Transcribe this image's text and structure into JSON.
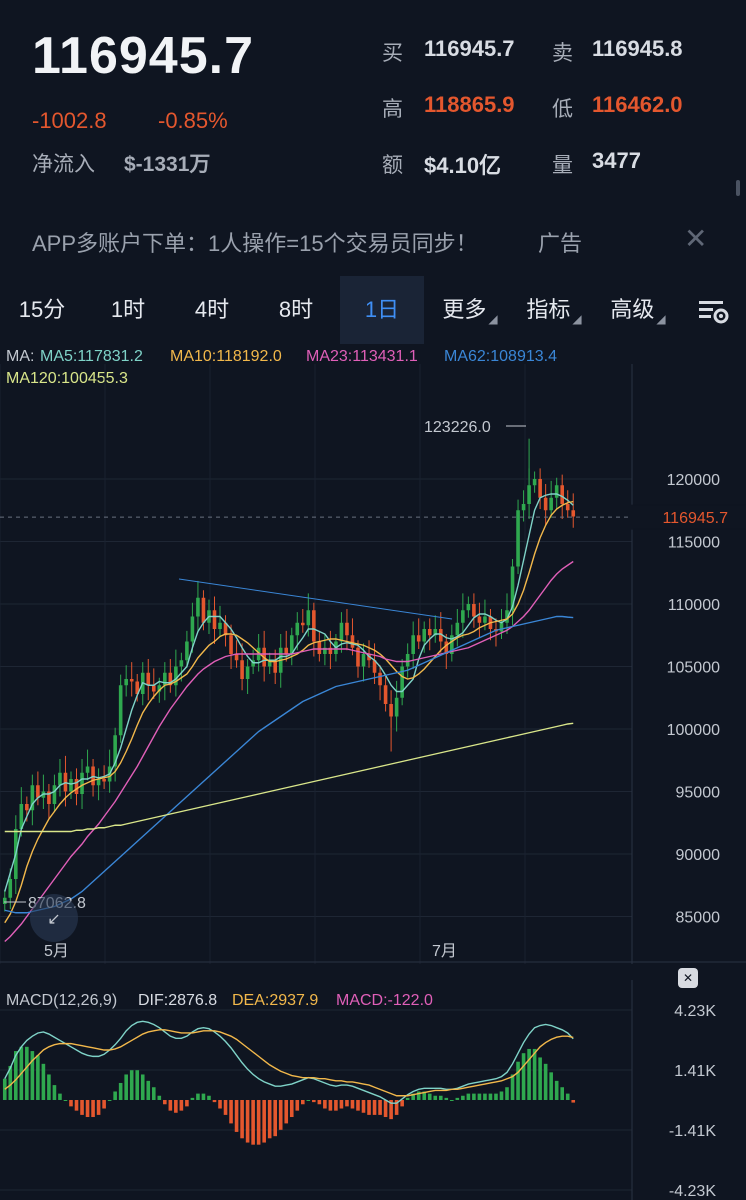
{
  "header": {
    "last_price": "116945.7",
    "change": "-1002.8",
    "change_pct": "-0.85%",
    "netflow_label": "净流入",
    "netflow_value": "$-1331万",
    "quote": {
      "buy_label": "买",
      "buy_value": "116945.7",
      "sell_label": "卖",
      "sell_value": "116945.8",
      "high_label": "高",
      "high_value": "118865.9",
      "low_label": "低",
      "low_value": "116462.0",
      "amount_label": "额",
      "amount_value": "$4.10亿",
      "volume_label": "量",
      "volume_value": "3477"
    }
  },
  "ad": {
    "text": "APP多账户下单：1人操作=15个交易员同步！",
    "tag": "广告",
    "close_icon": "close-icon"
  },
  "tabs": [
    {
      "label": "15分",
      "active": false
    },
    {
      "label": "1时",
      "active": false
    },
    {
      "label": "4时",
      "active": false
    },
    {
      "label": "8时",
      "active": false
    },
    {
      "label": "1日",
      "active": true
    },
    {
      "label": "更多",
      "active": false
    },
    {
      "label": "指标",
      "active": false
    },
    {
      "label": "高级",
      "active": false
    }
  ],
  "tab_settings_icon": "chart-settings-icon",
  "ma_legend": {
    "prefix": "MA:",
    "ma5": "MA5:117831.2",
    "ma10": "MA10:118192.0",
    "ma23": "MA23:113431.1",
    "ma62": "MA62:108913.4",
    "ma120": "MA120:100455.3"
  },
  "colors": {
    "up": "#e4572e",
    "green": "#2fa84f",
    "ma5": "#7fd3c8",
    "ma10": "#f2b84b",
    "ma23": "#e05fb8",
    "ma62": "#3a86d6",
    "ma120": "#d9e68a",
    "accent": "#3f8ff5",
    "dif": "#7fd3c8",
    "dea": "#f2b84b"
  },
  "macd_legend": {
    "label": "MACD(12,26,9)",
    "dif": "DIF:2876.8",
    "dea": "DEA:2937.9",
    "macd": "MACD:-122.0"
  },
  "chart_data": [
    {
      "type": "candlestick",
      "ylim": [
        82000,
        126000
      ],
      "y_ticks": [
        "120000",
        "115000",
        "110000",
        "105000",
        "100000",
        "95000",
        "90000",
        "85000"
      ],
      "x_labels": [
        "5月",
        "7月"
      ],
      "last_price_label": "116945.7",
      "high_marker": "123226.0",
      "low_marker": "87062.8",
      "close": [
        86500,
        88000,
        92000,
        94000,
        93500,
        95500,
        94500,
        95000,
        94000,
        95500,
        96500,
        95000,
        96000,
        94800,
        96500,
        97000,
        95500,
        96000,
        95800,
        97000,
        99500,
        103500,
        104000,
        103800,
        102800,
        104500,
        103500,
        103000,
        103500,
        104500,
        103500,
        105000,
        105500,
        107000,
        109000,
        110500,
        108500,
        109500,
        108000,
        108500,
        107500,
        106000,
        105500,
        104000,
        105000,
        105500,
        106500,
        105000,
        105500,
        104500,
        106500,
        106000,
        107500,
        108500,
        108300,
        109500,
        107000,
        106000,
        106500,
        106000,
        107000,
        108500,
        107500,
        106500,
        105000,
        106000,
        105500,
        104500,
        103500,
        102000,
        101000,
        102500,
        105000,
        106000,
        107500,
        107000,
        108000,
        107500,
        108000,
        107000,
        106000,
        107500,
        108500,
        109500,
        110000,
        109000,
        108500,
        109000,
        108000,
        107800,
        108500,
        109500,
        113000,
        117500,
        118000,
        119500,
        120000,
        118500,
        117500,
        118500,
        119500,
        118000,
        117500,
        117000
      ],
      "ma_series": [
        {
          "name": "MA5",
          "values": [
            87000,
            88500,
            90000,
            92000,
            93000,
            94000,
            94500,
            94800,
            94800,
            95000,
            95500,
            95700,
            95600,
            95700,
            96000,
            96000,
            96200,
            96100,
            96200,
            96400,
            97300,
            98500,
            100000,
            101500,
            102700,
            103700,
            103500,
            103500,
            103800,
            103700,
            103700,
            104000,
            104500,
            105000,
            106500,
            107800,
            108500,
            109000,
            109000,
            109000,
            108500,
            108000,
            107300,
            106500,
            105800,
            105300,
            105300,
            105500,
            105500,
            105500,
            105800,
            105800,
            106000,
            106700,
            107300,
            108000,
            108000,
            107800,
            107600,
            107000,
            106500,
            106800,
            106900,
            106800,
            106700,
            106300,
            105800,
            105500,
            105000,
            104300,
            103500,
            103000,
            103000,
            103500,
            104000,
            105600,
            106700,
            107200,
            107600,
            107600,
            107300,
            107200,
            107400,
            107700,
            108300,
            108900,
            109200,
            109200,
            109000,
            108700,
            108500,
            108800,
            109800,
            111500,
            113500,
            115500,
            117500,
            118500,
            118700,
            118800,
            118800,
            118600,
            118300,
            117900
          ]
        },
        {
          "name": "MA10",
          "values": [
            84500,
            85200,
            86200,
            87500,
            89000,
            90200,
            91200,
            92000,
            92800,
            93400,
            94000,
            94500,
            94900,
            95200,
            95500,
            95700,
            95900,
            96000,
            96100,
            96200,
            96600,
            97300,
            98200,
            99200,
            100300,
            101300,
            102000,
            102600,
            103100,
            103500,
            103600,
            103800,
            104100,
            104400,
            105000,
            105700,
            106200,
            106700,
            107000,
            107400,
            107600,
            107600,
            107500,
            107200,
            106900,
            106500,
            106100,
            105700,
            105400,
            105400,
            105500,
            105600,
            105800,
            106000,
            106300,
            106700,
            106900,
            107000,
            107100,
            107200,
            107200,
            107100,
            107000,
            106900,
            106800,
            106700,
            106500,
            106300,
            106000,
            105600,
            105100,
            104600,
            104200,
            104000,
            104100,
            104400,
            104800,
            105300,
            105800,
            106300,
            106700,
            107000,
            107300,
            107500,
            107600,
            107800,
            108100,
            108300,
            108500,
            108600,
            108700,
            108800,
            109200,
            110000,
            111100,
            112500,
            114000,
            115300,
            116300,
            117100,
            117600,
            117900,
            118100,
            118200
          ]
        },
        {
          "name": "MA23",
          "values": [
            83000,
            83400,
            83900,
            84400,
            85000,
            85600,
            86200,
            86800,
            87400,
            88000,
            88600,
            89200,
            89800,
            90300,
            90800,
            91400,
            91900,
            92400,
            93000,
            93600,
            94200,
            94900,
            95600,
            96300,
            97000,
            97800,
            98600,
            99400,
            100200,
            100900,
            101600,
            102200,
            102800,
            103400,
            103900,
            104400,
            104800,
            105100,
            105400,
            105600,
            105800,
            105900,
            106000,
            106000,
            106000,
            106000,
            106000,
            106000,
            106000,
            106000,
            106000,
            106000,
            106000,
            106100,
            106200,
            106300,
            106400,
            106400,
            106400,
            106400,
            106400,
            106400,
            106400,
            106300,
            106200,
            106100,
            106000,
            105900,
            105800,
            105600,
            105500,
            105400,
            105400,
            105400,
            105500,
            105600,
            105700,
            105800,
            105900,
            106000,
            106100,
            106200,
            106300,
            106400,
            106500,
            106700,
            106900,
            107100,
            107300,
            107500,
            107700,
            107900,
            108200,
            108600,
            109000,
            109500,
            110100,
            110700,
            111300,
            111900,
            112400,
            112800,
            113100,
            113400
          ]
        },
        {
          "name": "MA62",
          "values": [
            85500,
            85400,
            85300,
            85300,
            85300,
            85400,
            85500,
            85600,
            85700,
            85800,
            86000,
            86200,
            86400,
            86700,
            87000,
            87400,
            87800,
            88200,
            88600,
            89000,
            89400,
            89800,
            90200,
            90600,
            91000,
            91400,
            91800,
            92200,
            92600,
            93000,
            93400,
            93800,
            94200,
            94600,
            95000,
            95400,
            95800,
            96200,
            96600,
            97000,
            97400,
            97800,
            98200,
            98600,
            99000,
            99400,
            99800,
            100100,
            100400,
            100700,
            101000,
            101300,
            101600,
            101900,
            102200,
            102400,
            102600,
            102800,
            103000,
            103200,
            103400,
            103500,
            103600,
            103700,
            103800,
            103900,
            104000,
            104100,
            104200,
            104300,
            104400,
            104500,
            104600,
            104700,
            104900,
            105100,
            105300,
            105500,
            105700,
            105900,
            106100,
            106300,
            106500,
            106700,
            106900,
            107100,
            107300,
            107500,
            107700,
            107900,
            108000,
            108100,
            108200,
            108300,
            108400,
            108500,
            108600,
            108700,
            108800,
            108900,
            109000,
            109000,
            108950,
            108913
          ]
        },
        {
          "name": "MA120",
          "values": [
            91800,
            91800,
            91800,
            91800,
            91800,
            91800,
            91800,
            91800,
            91800,
            91800,
            91800,
            91800,
            91800,
            91900,
            91900,
            92000,
            92000,
            92100,
            92100,
            92200,
            92300,
            92300,
            92400,
            92500,
            92600,
            92700,
            92800,
            92900,
            93000,
            93100,
            93200,
            93300,
            93400,
            93500,
            93600,
            93700,
            93800,
            93900,
            94000,
            94100,
            94200,
            94300,
            94400,
            94500,
            94600,
            94700,
            94800,
            94900,
            95000,
            95100,
            95200,
            95300,
            95400,
            95500,
            95600,
            95700,
            95800,
            95900,
            96000,
            96100,
            96200,
            96300,
            96400,
            96500,
            96600,
            96700,
            96800,
            96900,
            97000,
            97100,
            97200,
            97300,
            97400,
            97500,
            97600,
            97700,
            97800,
            97900,
            98000,
            98100,
            98200,
            98300,
            98400,
            98500,
            98600,
            98700,
            98800,
            98900,
            99000,
            99100,
            99200,
            99300,
            99400,
            99500,
            99600,
            99700,
            99800,
            99900,
            100000,
            100100,
            100200,
            100300,
            100400,
            100455
          ]
        }
      ],
      "trendline": {
        "from": [
          179,
          112000
        ],
        "to": [
          450,
          109000
        ]
      }
    },
    {
      "type": "macd",
      "y_ticks": [
        "4.23K",
        "1.41K",
        "-1.41K",
        "-4.23K"
      ],
      "ylim": [
        -4230,
        4230
      ],
      "dif": [
        1000,
        1500,
        2100,
        2500,
        2800,
        3000,
        3150,
        3200,
        3100,
        2950,
        2800,
        2650,
        2500,
        2350,
        2200,
        2100,
        2050,
        2050,
        2150,
        2350,
        2600,
        2900,
        3250,
        3500,
        3650,
        3700,
        3650,
        3550,
        3400,
        3200,
        3000,
        2900,
        2900,
        3000,
        3200,
        3350,
        3400,
        3350,
        3200,
        3000,
        2750,
        2450,
        2100,
        1750,
        1450,
        1200,
        1000,
        850,
        750,
        650,
        650,
        700,
        750,
        850,
        950,
        1050,
        1000,
        900,
        800,
        700,
        650,
        700,
        700,
        650,
        550,
        450,
        350,
        250,
        150,
        0,
        -150,
        -150,
        50,
        250,
        400,
        500,
        550,
        550,
        550,
        550,
        500,
        500,
        550,
        650,
        750,
        800,
        850,
        900,
        950,
        1000,
        1100,
        1300,
        1700,
        2200,
        2700,
        3100,
        3400,
        3500,
        3550,
        3500,
        3400,
        3300,
        3150,
        2877
      ],
      "dea": [
        500,
        700,
        950,
        1250,
        1550,
        1850,
        2100,
        2350,
        2500,
        2600,
        2650,
        2650,
        2650,
        2600,
        2550,
        2500,
        2450,
        2400,
        2350,
        2350,
        2400,
        2500,
        2650,
        2800,
        2950,
        3100,
        3200,
        3250,
        3300,
        3300,
        3250,
        3200,
        3150,
        3150,
        3150,
        3200,
        3250,
        3250,
        3250,
        3200,
        3100,
        3000,
        2850,
        2650,
        2450,
        2250,
        2050,
        1850,
        1650,
        1500,
        1350,
        1250,
        1150,
        1100,
        1050,
        1050,
        1050,
        1000,
        1000,
        950,
        900,
        900,
        850,
        850,
        800,
        750,
        700,
        600,
        500,
        400,
        300,
        200,
        200,
        200,
        250,
        300,
        350,
        400,
        450,
        450,
        450,
        500,
        500,
        550,
        600,
        650,
        700,
        750,
        800,
        850,
        900,
        1000,
        1100,
        1300,
        1600,
        1900,
        2200,
        2500,
        2700,
        2850,
        2950,
        3000,
        3000,
        2938
      ],
      "hist": [
        1000,
        1600,
        2300,
        2500,
        2500,
        2300,
        2100,
        1700,
        1200,
        700,
        300,
        0,
        -300,
        -500,
        -700,
        -800,
        -800,
        -700,
        -400,
        0,
        400,
        800,
        1200,
        1400,
        1400,
        1200,
        900,
        600,
        200,
        -200,
        -500,
        -600,
        -500,
        -300,
        100,
        300,
        300,
        200,
        -100,
        -400,
        -700,
        -1100,
        -1500,
        -1800,
        -2000,
        -2100,
        -2100,
        -2000,
        -1800,
        -1700,
        -1400,
        -1100,
        -800,
        -500,
        -200,
        0,
        -100,
        -200,
        -400,
        -500,
        -500,
        -400,
        -300,
        -400,
        -500,
        -600,
        -700,
        -700,
        -700,
        -800,
        -900,
        -700,
        -300,
        100,
        300,
        400,
        400,
        300,
        200,
        200,
        100,
        0,
        100,
        200,
        300,
        300,
        300,
        300,
        300,
        300,
        400,
        600,
        1200,
        1800,
        2200,
        2400,
        2400,
        2000,
        1700,
        1300,
        900,
        600,
        300,
        -122
      ]
    }
  ]
}
